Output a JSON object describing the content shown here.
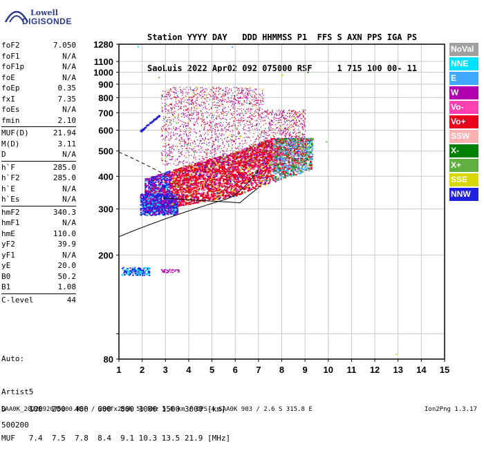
{
  "logo": {
    "top": "Lowell",
    "bottom": "DIGISONDE"
  },
  "header": {
    "line1": "Station YYYY DAY   DDD HHMMSS P1  FFS S AXN PPS IGA PS",
    "line2": "SaoLuis 2022 Apr02 092 075000 RSF     1 715 100 00- 11"
  },
  "params": [
    {
      "label": "foF2",
      "value": "7.050"
    },
    {
      "label": "foF1",
      "value": "N/A"
    },
    {
      "label": "foF1p",
      "value": "N/A"
    },
    {
      "label": "foE",
      "value": "N/A"
    },
    {
      "label": "foEp",
      "value": "0.35"
    },
    {
      "label": "fxI",
      "value": "7.35"
    },
    {
      "label": "foEs",
      "value": "N/A"
    },
    {
      "label": "fmin",
      "value": "2.10"
    },
    {
      "label": "MUF(D)",
      "value": "21.94",
      "sep": true
    },
    {
      "label": "M(D)",
      "value": "3.11"
    },
    {
      "label": "D",
      "value": "N/A"
    },
    {
      "label": "h`F",
      "value": "285.0",
      "sep": true
    },
    {
      "label": "h`F2",
      "value": "285.0"
    },
    {
      "label": "h`E",
      "value": "N/A"
    },
    {
      "label": "h`Es",
      "value": "N/A"
    },
    {
      "label": "hmF2",
      "value": "340.3",
      "sep": true
    },
    {
      "label": "hmF1",
      "value": "N/A"
    },
    {
      "label": "hmE",
      "value": "110.0"
    },
    {
      "label": "yF2",
      "value": "39.9"
    },
    {
      "label": "yF1",
      "value": "N/A"
    },
    {
      "label": "yE",
      "value": "20.0"
    },
    {
      "label": "B0",
      "value": "50.2"
    },
    {
      "label": "B1",
      "value": "1.08"
    },
    {
      "label": "C-level",
      "value": "44",
      "sep": true
    }
  ],
  "auto": {
    "line1": "Auto:",
    "line2": "Artist5",
    "line3": "500200"
  },
  "legend": [
    {
      "label": "NoVal",
      "color": "#a0a0a0"
    },
    {
      "label": "NNE",
      "color": "#00e0ff"
    },
    {
      "label": "E",
      "color": "#40a8ff"
    },
    {
      "label": "W",
      "color": "#b000b0"
    },
    {
      "label": "Vo-",
      "color": "#ff40b0"
    },
    {
      "label": "Vo+",
      "color": "#e8001c"
    },
    {
      "label": "SSW",
      "color": "#ffb0b0"
    },
    {
      "label": "X-",
      "color": "#008000"
    },
    {
      "label": "X+",
      "color": "#60b040"
    },
    {
      "label": "SSE",
      "color": "#d8d800"
    },
    {
      "label": "NNW",
      "color": "#2020e0"
    }
  ],
  "muf_table": {
    "line1": "D     100  200  400  600  800 1000 1500 3000 [km]",
    "line2": "MUF   7.4  7.5  7.8  8.4  9.1 10.3 13.5 21.9 [MHz]"
  },
  "footer": "SAA0K_2022092075000.RSF / 280fx256h 50 kHz 5.0 km / DPS-4 SAA0K 903 / 2.6 S 315.8 E",
  "footer_right": "Ion2Png 1.3.17",
  "chart_data": {
    "type": "scatter",
    "title": "",
    "xlabel": "",
    "ylabel": "",
    "xlim": [
      1,
      15
    ],
    "ylim_log": [
      80,
      1280
    ],
    "grid": true,
    "x_ticks": [
      1,
      2,
      3,
      4,
      5,
      6,
      7,
      8,
      9,
      10,
      11,
      12,
      13,
      14,
      15
    ],
    "y_ticks": [
      80,
      100,
      200,
      300,
      400,
      500,
      600,
      700,
      800,
      900,
      1000,
      1100,
      1280
    ],
    "y_tick_labels": [
      "80",
      "",
      "200",
      "300",
      "400",
      "500",
      "600",
      "700",
      "800",
      "900",
      "1000",
      "1100",
      "1280"
    ]
  }
}
